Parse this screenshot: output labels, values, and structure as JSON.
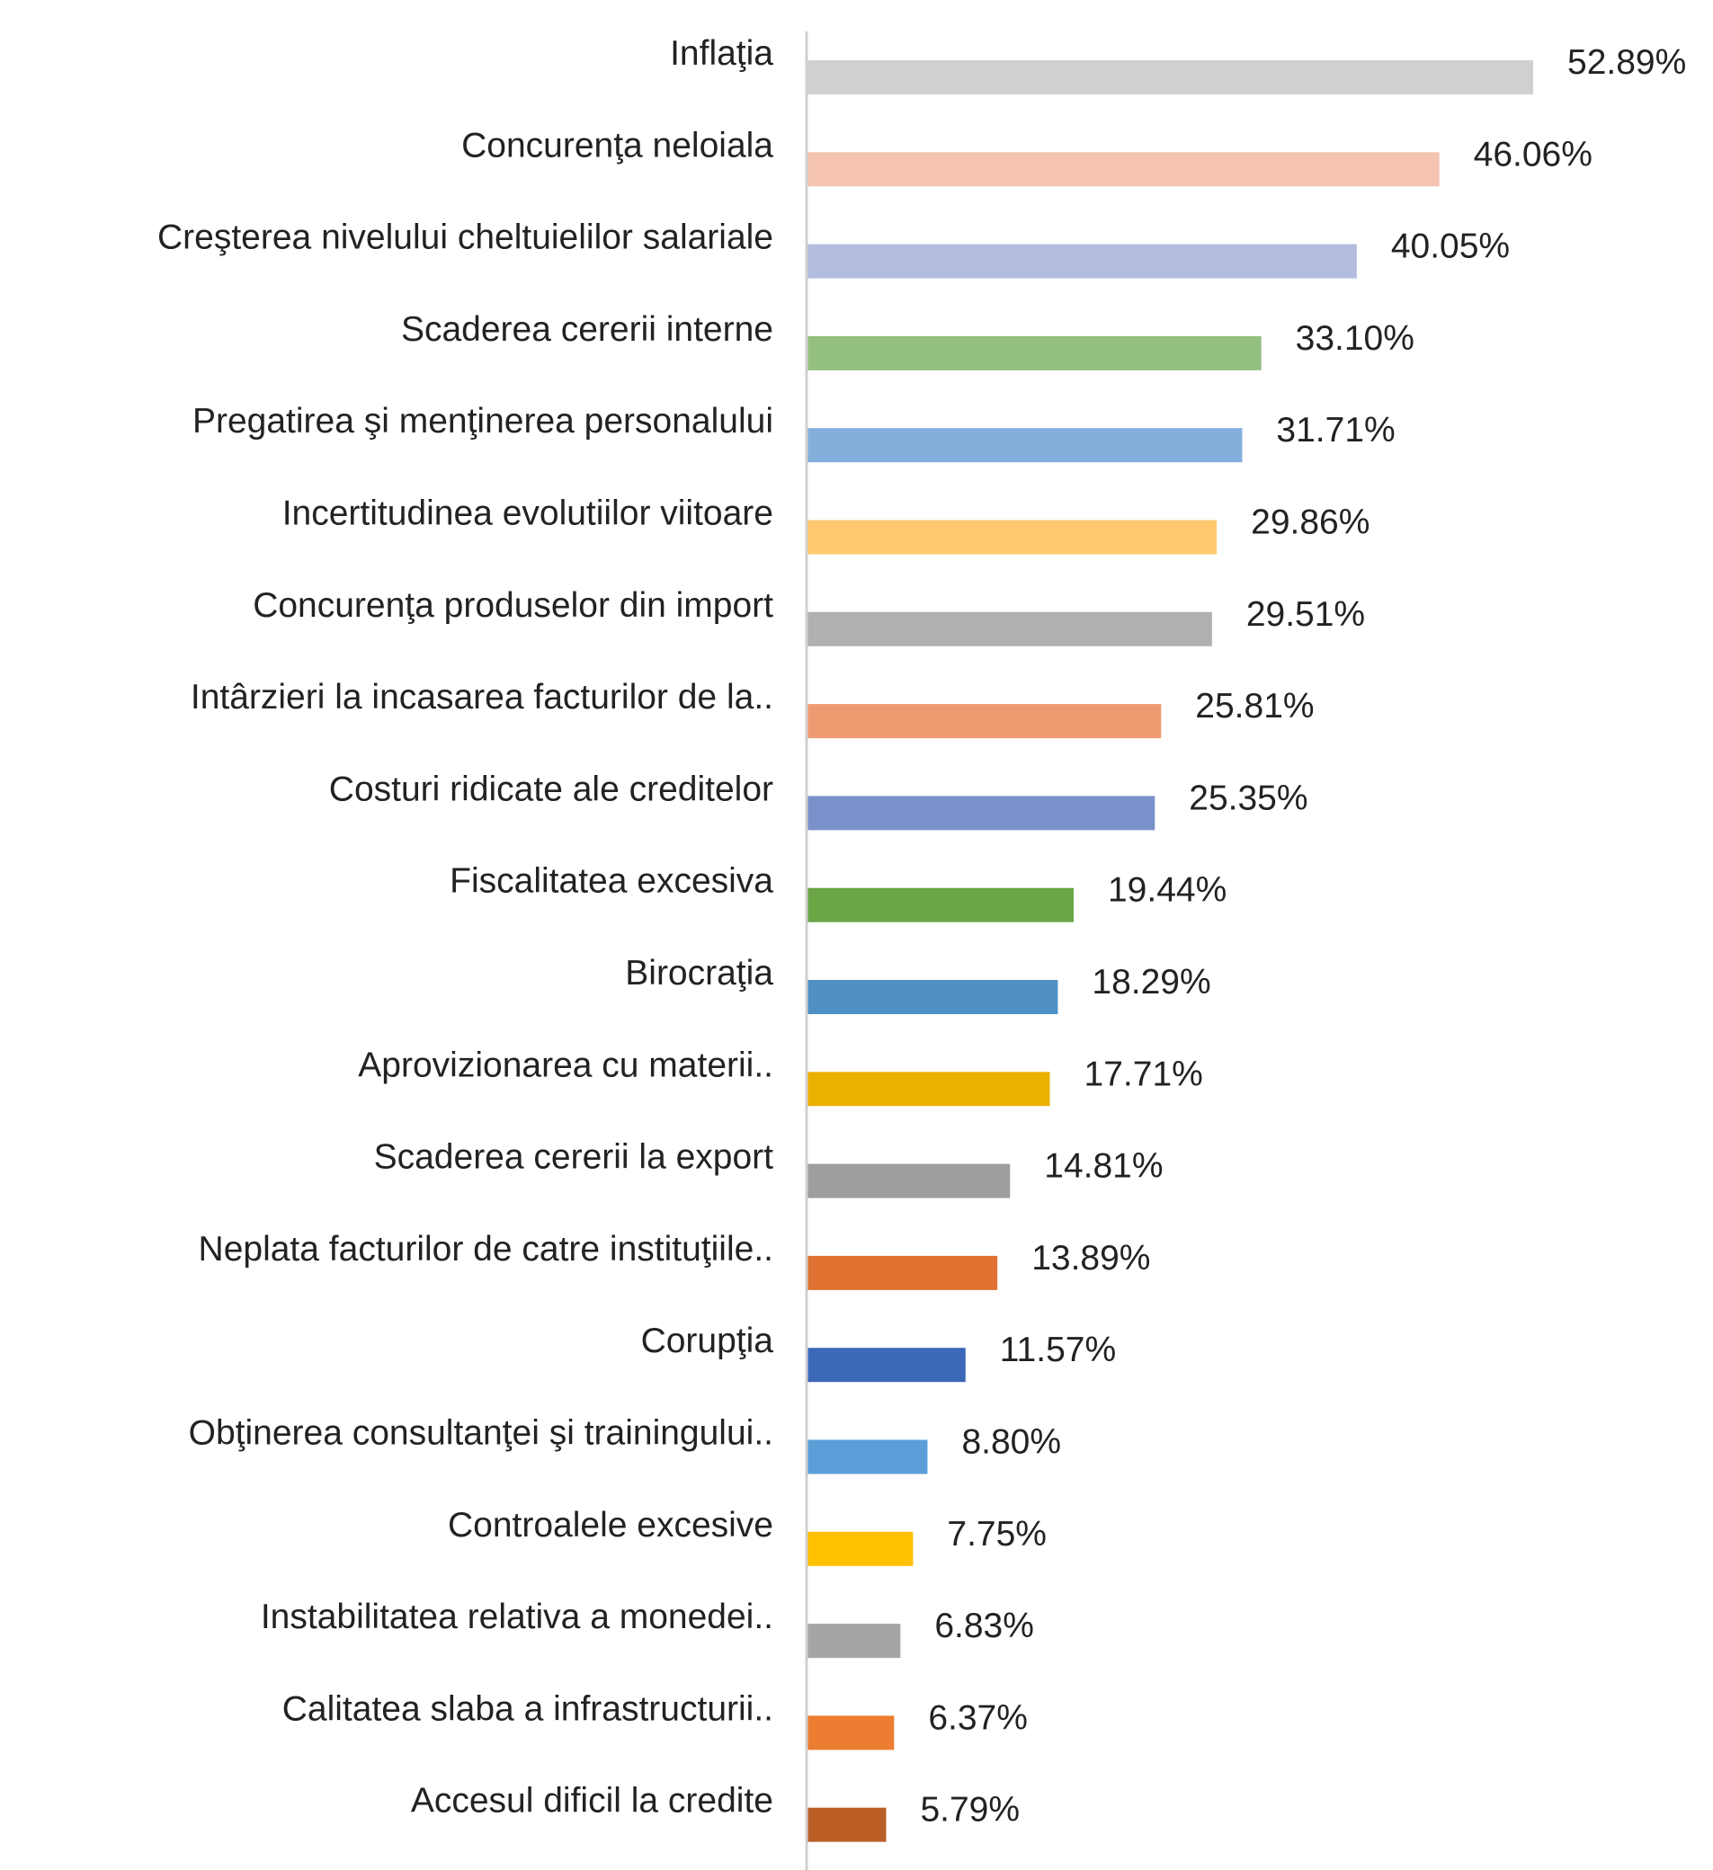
{
  "chart_data": {
    "type": "bar",
    "orientation": "horizontal",
    "title": "",
    "xlabel": "",
    "ylabel": "",
    "grid": false,
    "legend": "none",
    "xlim": [
      0,
      52.89
    ],
    "value_format": "percent_2dp",
    "categories": [
      "Inflaţia",
      "Concurenţa neloiala",
      "Creşterea nivelului cheltuielilor salariale",
      "Scaderea cererii interne",
      "Pregatirea şi menţinerea personalului",
      "Incertitudinea evolutiilor viitoare",
      "Concurenţa produselor din import",
      "Intârzieri la incasarea facturilor de la..",
      "Costuri ridicate ale creditelor",
      "Fiscalitatea excesiva",
      "Birocraţia",
      "Aprovizionarea cu materii..",
      "Scaderea cererii la export",
      "Neplata facturilor de catre instituţiile..",
      "Corupţia",
      "Obţinerea consultanţei şi trainingului..",
      "Controalele excesive",
      "Instabilitatea relativa a monedei..",
      "Calitatea slaba a infrastructurii..",
      "Accesul dificil la credite"
    ],
    "values": [
      52.89,
      46.06,
      40.05,
      33.1,
      31.71,
      29.86,
      29.51,
      25.81,
      25.35,
      19.44,
      18.29,
      17.71,
      14.81,
      13.89,
      11.57,
      8.8,
      7.75,
      6.83,
      6.37,
      5.79
    ],
    "value_labels": [
      "52.89%",
      "46.06%",
      "40.05%",
      "33.10%",
      "31.71%",
      "29.86%",
      "29.51%",
      "25.81%",
      "25.35%",
      "19.44%",
      "18.29%",
      "17.71%",
      "14.81%",
      "13.89%",
      "11.57%",
      "8.80%",
      "7.75%",
      "6.83%",
      "6.37%",
      "5.79%"
    ],
    "colors": [
      "#d0d0d0",
      "#f4c4b0",
      "#b4bde0",
      "#93bf7f",
      "#84aedc",
      "#fec96e",
      "#b0b0b0",
      "#ee9b72",
      "#7a91cc",
      "#6aa546",
      "#4f91c5",
      "#eab100",
      "#9e9e9e",
      "#df7230",
      "#3c68b8",
      "#5b9ed8",
      "#ffc000",
      "#a5a5a5",
      "#ed7d31",
      "#bb5f27"
    ]
  }
}
